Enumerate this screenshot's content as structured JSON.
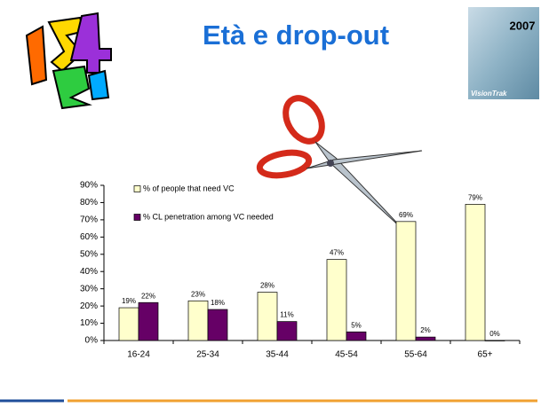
{
  "header": {
    "title": "Età e drop-out",
    "year": "2007",
    "brand": "VisionTrak"
  },
  "chart_data": {
    "type": "bar",
    "categories": [
      "16-24",
      "25-34",
      "35-44",
      "45-54",
      "55-64",
      "65+"
    ],
    "series": [
      {
        "name": "% of people that need VC",
        "color": "#ffffcc",
        "values": [
          19,
          23,
          28,
          47,
          69,
          79
        ],
        "value_labels": [
          "19%",
          "23%",
          "28%",
          "47%",
          "69%",
          "79%"
        ]
      },
      {
        "name": "% CL penetration among VC needed",
        "color": "#660066",
        "values": [
          22,
          18,
          11,
          5,
          2,
          0
        ],
        "value_labels": [
          "22%",
          "18%",
          "11%",
          "5%",
          "2%",
          "0%"
        ]
      }
    ],
    "ylim": [
      0,
      90
    ],
    "yticks": [
      {
        "value": 0,
        "label": "0%"
      },
      {
        "value": 10,
        "label": "10%"
      },
      {
        "value": 20,
        "label": "20%"
      },
      {
        "value": 30,
        "label": "30%"
      },
      {
        "value": 40,
        "label": "40%"
      },
      {
        "value": 50,
        "label": "50%"
      },
      {
        "value": 60,
        "label": "60%"
      },
      {
        "value": 70,
        "label": "70%"
      },
      {
        "value": 80,
        "label": "80%"
      },
      {
        "value": 90,
        "label": "90%"
      }
    ],
    "legend": "upper left"
  }
}
